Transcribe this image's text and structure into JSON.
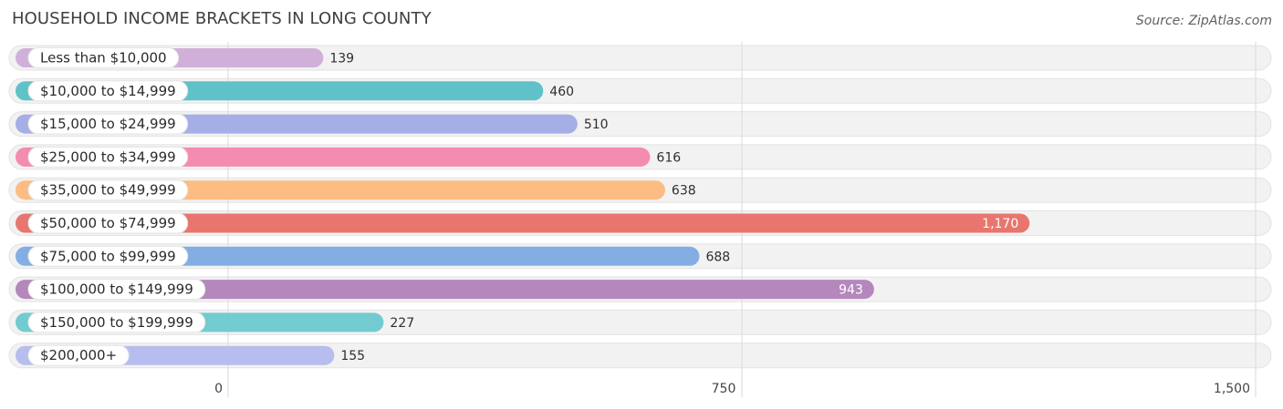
{
  "header": {
    "title": "HOUSEHOLD INCOME BRACKETS IN LONG COUNTY",
    "source": "Source: ZipAtlas.com"
  },
  "chart_data": {
    "type": "bar",
    "orientation": "horizontal",
    "categories": [
      "Less than $10,000",
      "$10,000 to $14,999",
      "$15,000 to $24,999",
      "$25,000 to $34,999",
      "$35,000 to $49,999",
      "$50,000 to $74,999",
      "$75,000 to $99,999",
      "$100,000 to $149,999",
      "$150,000 to $199,999",
      "$200,000+"
    ],
    "values": [
      139,
      460,
      510,
      616,
      638,
      1170,
      688,
      943,
      227,
      155
    ],
    "value_labels": [
      "139",
      "460",
      "510",
      "616",
      "638",
      "1,170",
      "688",
      "943",
      "227",
      "155"
    ],
    "colors": [
      "#d0b0d8",
      "#5fc2c8",
      "#a6aee6",
      "#f48bb0",
      "#fbbd83",
      "#e8766f",
      "#82aee4",
      "#b487bd",
      "#72cbd0",
      "#b7bdee"
    ],
    "xlim": [
      0,
      1500
    ],
    "xticks": [
      0,
      750,
      1500
    ],
    "xtick_labels": [
      "0",
      "750",
      "1,500"
    ],
    "grid": true
  }
}
